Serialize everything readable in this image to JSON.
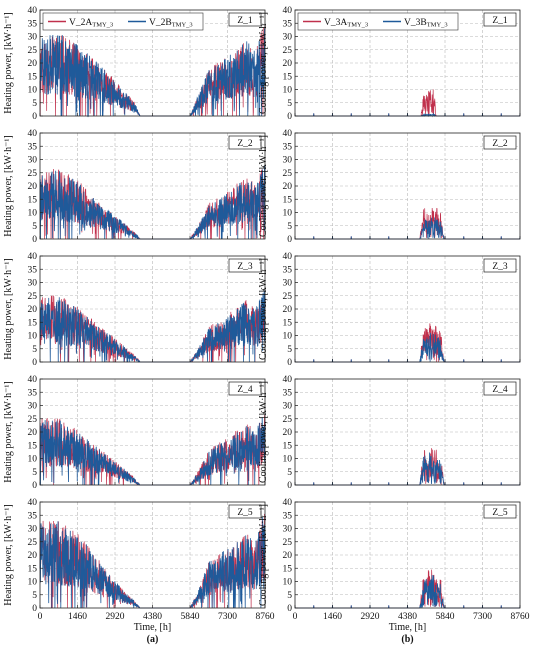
{
  "figure": {
    "x_ticks": [
      0,
      1460,
      2920,
      4380,
      5840,
      7300,
      8760
    ],
    "xlabel": "Time, [h]",
    "xlim": [
      0,
      8760
    ],
    "ylim": [
      0,
      40
    ],
    "y_ticks": [
      0,
      5,
      10,
      15,
      20,
      25,
      30,
      35,
      40
    ],
    "panel_labels": [
      "(a)",
      "(b)"
    ],
    "colors": {
      "variant_A": "#c0304c",
      "variant_B": "#1f5a9a"
    }
  },
  "chart_data": [
    {
      "type": "line",
      "panel": "a",
      "zone": "Z_1",
      "ylabel": "Heating power, [kW·h⁻¹]",
      "legend": {
        "position": "top-left",
        "entries": [
          {
            "name": "V_2A",
            "sub": "TMY_3",
            "color": "#c0304c"
          },
          {
            "name": "V_2B",
            "sub": "TMY_3",
            "color": "#1f5a9a"
          }
        ]
      },
      "profile": {
        "x": [
          0,
          730,
          1460,
          2190,
          2920,
          3300,
          3650,
          3900,
          5840,
          6200,
          6570,
          7300,
          8030,
          8400,
          8760
        ],
        "y": [
          20,
          21,
          18,
          14,
          9,
          6,
          4,
          0,
          0,
          6,
          12,
          15,
          19,
          17,
          24
        ]
      },
      "series": [
        {
          "name": "V_2A",
          "sub": "TMY_3",
          "color": "#c0304c",
          "seed": 11,
          "scale": 1.0
        },
        {
          "name": "V_2B",
          "sub": "TMY_3",
          "color": "#1f5a9a",
          "seed": 12,
          "scale": 1.0
        }
      ]
    },
    {
      "type": "line",
      "panel": "a",
      "zone": "Z_2",
      "ylabel": "Heating power, [kW·h⁻¹]",
      "profile": {
        "x": [
          0,
          730,
          1460,
          2190,
          2920,
          3300,
          3650,
          3900,
          5840,
          6200,
          6570,
          7300,
          8030,
          8400,
          8760
        ],
        "y": [
          17,
          18,
          15,
          10,
          6,
          4,
          2,
          0,
          0,
          4,
          9,
          12,
          16,
          14,
          20
        ]
      },
      "series": [
        {
          "name": "V_2A",
          "sub": "TMY_3",
          "color": "#c0304c",
          "seed": 21,
          "scale": 1.0
        },
        {
          "name": "V_2B",
          "sub": "TMY_3",
          "color": "#1f5a9a",
          "seed": 22,
          "scale": 0.97
        }
      ]
    },
    {
      "type": "line",
      "panel": "a",
      "zone": "Z_3",
      "ylabel": "Heating power, [kW·h⁻¹]",
      "profile": {
        "x": [
          0,
          730,
          1460,
          2190,
          2920,
          3300,
          3650,
          3900,
          5840,
          6200,
          6570,
          7300,
          8030,
          8400,
          8760
        ],
        "y": [
          17,
          17,
          14,
          10,
          6,
          4,
          2,
          0,
          0,
          4,
          9,
          12,
          16,
          14,
          20
        ]
      },
      "series": [
        {
          "name": "V_2A",
          "sub": "TMY_3",
          "color": "#c0304c",
          "seed": 31,
          "scale": 1.0
        },
        {
          "name": "V_2B",
          "sub": "TMY_3",
          "color": "#1f5a9a",
          "seed": 32,
          "scale": 0.97
        }
      ]
    },
    {
      "type": "line",
      "panel": "a",
      "zone": "Z_4",
      "ylabel": "Heating power, [kW·h⁻¹]",
      "profile": {
        "x": [
          0,
          730,
          1460,
          2190,
          2920,
          3300,
          3650,
          3900,
          5840,
          6200,
          6570,
          7300,
          8030,
          8400,
          8760
        ],
        "y": [
          17,
          17,
          14,
          10,
          6,
          4,
          2,
          0,
          0,
          4,
          9,
          12,
          16,
          14,
          20
        ]
      },
      "series": [
        {
          "name": "V_2A",
          "sub": "TMY_3",
          "color": "#c0304c",
          "seed": 41,
          "scale": 1.0
        },
        {
          "name": "V_2B",
          "sub": "TMY_3",
          "color": "#1f5a9a",
          "seed": 42,
          "scale": 0.97
        }
      ]
    },
    {
      "type": "line",
      "panel": "a",
      "zone": "Z_5",
      "ylabel": "Heating power, [kW·h⁻¹]",
      "profile": {
        "x": [
          0,
          730,
          1460,
          2190,
          2920,
          3300,
          3650,
          3900,
          5840,
          6200,
          6570,
          7300,
          8030,
          8400,
          8760
        ],
        "y": [
          22,
          22,
          19,
          13,
          7,
          4,
          2,
          0,
          0,
          5,
          12,
          15,
          19,
          17,
          26
        ]
      },
      "series": [
        {
          "name": "V_2A",
          "sub": "TMY_3",
          "color": "#c0304c",
          "seed": 51,
          "scale": 1.0
        },
        {
          "name": "V_2B",
          "sub": "TMY_3",
          "color": "#1f5a9a",
          "seed": 52,
          "scale": 1.0
        }
      ]
    },
    {
      "type": "line",
      "panel": "b",
      "zone": "Z_1",
      "ylabel": "Cooling power, [kW·h⁻¹]",
      "legend": {
        "position": "top-left",
        "entries": [
          {
            "name": "V_3A",
            "sub": "TMY_3",
            "color": "#c0304c"
          },
          {
            "name": "V_3B",
            "sub": "TMY_3",
            "color": "#1f5a9a"
          }
        ]
      },
      "baseline_spike": 1,
      "profile": {
        "x": [
          0,
          4900,
          5000,
          5200,
          5400,
          5500,
          8760
        ],
        "y": [
          0,
          0,
          5,
          6,
          7,
          0,
          0
        ]
      },
      "series": [
        {
          "name": "V_3A",
          "sub": "TMY_3",
          "color": "#c0304c",
          "seed": 61,
          "scale": 1.0
        },
        {
          "name": "V_3B",
          "sub": "TMY_3",
          "color": "#1f5a9a",
          "seed": 62,
          "scale": 0.08
        }
      ]
    },
    {
      "type": "line",
      "panel": "b",
      "zone": "Z_2",
      "ylabel": "Cooling power, [kW·h⁻¹]",
      "baseline_spike": 1,
      "profile": {
        "x": [
          0,
          4850,
          5000,
          5200,
          5400,
          5700,
          5800,
          8760
        ],
        "y": [
          0,
          0,
          7,
          8,
          8,
          6,
          0,
          0
        ]
      },
      "series": [
        {
          "name": "V_3A",
          "sub": "TMY_3",
          "color": "#c0304c",
          "seed": 71,
          "scale": 1.0
        },
        {
          "name": "V_3B",
          "sub": "TMY_3",
          "color": "#1f5a9a",
          "seed": 72,
          "scale": 0.65
        }
      ]
    },
    {
      "type": "line",
      "panel": "b",
      "zone": "Z_3",
      "ylabel": "Cooling power, [kW·h⁻¹]",
      "baseline_spike": 1,
      "profile": {
        "x": [
          0,
          4850,
          5000,
          5200,
          5400,
          5700,
          5800,
          8760
        ],
        "y": [
          0,
          0,
          8,
          9,
          9,
          7,
          0,
          0
        ]
      },
      "series": [
        {
          "name": "V_3A",
          "sub": "TMY_3",
          "color": "#c0304c",
          "seed": 81,
          "scale": 1.0
        },
        {
          "name": "V_3B",
          "sub": "TMY_3",
          "color": "#1f5a9a",
          "seed": 82,
          "scale": 0.75
        }
      ]
    },
    {
      "type": "line",
      "panel": "b",
      "zone": "Z_4",
      "ylabel": "Cooling power, [kW·h⁻¹]",
      "baseline_spike": 1,
      "profile": {
        "x": [
          0,
          4850,
          5000,
          5200,
          5400,
          5700,
          5800,
          8760
        ],
        "y": [
          0,
          0,
          8,
          9,
          9,
          7,
          0,
          0
        ]
      },
      "series": [
        {
          "name": "V_3A",
          "sub": "TMY_3",
          "color": "#c0304c",
          "seed": 91,
          "scale": 1.0
        },
        {
          "name": "V_3B",
          "sub": "TMY_3",
          "color": "#1f5a9a",
          "seed": 92,
          "scale": 0.85
        }
      ]
    },
    {
      "type": "line",
      "panel": "b",
      "zone": "Z_5",
      "ylabel": "Cooling power, [kW·h⁻¹]",
      "baseline_spike": 1,
      "profile": {
        "x": [
          0,
          4850,
          5000,
          5200,
          5400,
          5700,
          5800,
          8760
        ],
        "y": [
          0,
          0,
          8,
          9,
          9,
          7,
          0,
          0
        ]
      },
      "series": [
        {
          "name": "V_3A",
          "sub": "TMY_3",
          "color": "#c0304c",
          "seed": 101,
          "scale": 1.0
        },
        {
          "name": "V_3B",
          "sub": "TMY_3",
          "color": "#1f5a9a",
          "seed": 102,
          "scale": 0.85
        }
      ]
    }
  ]
}
